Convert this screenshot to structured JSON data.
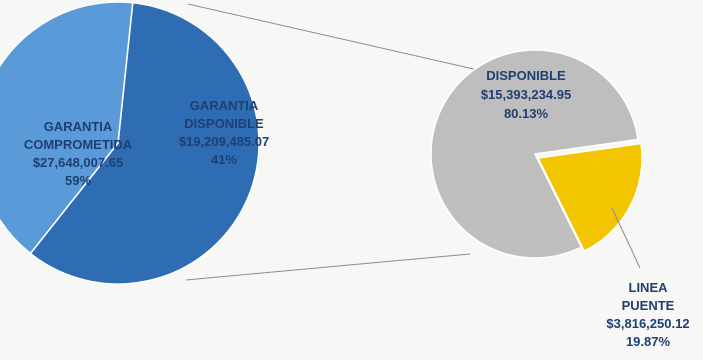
{
  "chart_data": [
    {
      "type": "pie",
      "slices": [
        {
          "labels": [
            "GARANTIA",
            "COMPROMETIDA"
          ],
          "value_label": "$27,648,007.65",
          "percent_label": "59%",
          "value": 27648007.65,
          "percent": 59,
          "color": "#2e6db4",
          "label_color": "#1f3f73"
        },
        {
          "labels": [
            "GARANTIA",
            "DISPONIBLE"
          ],
          "value_label": "$19,209,485.07",
          "percent_label": "41%",
          "value": 19209485.07,
          "percent": 41,
          "color": "#5b9ad8",
          "label_color": "#1f3f73"
        }
      ]
    },
    {
      "type": "pie",
      "slices": [
        {
          "labels": [
            "DISPONIBLE"
          ],
          "value_label": "$15,393,234.95",
          "percent_label": "80.13%",
          "value": 15393234.95,
          "percent": 80.13,
          "color": "#bebebe",
          "label_color": "#1f3f73"
        },
        {
          "labels": [
            "LINEA",
            "PUENTE"
          ],
          "value_label": "$3,816,250.12",
          "percent_label": "19.87%",
          "value": 3816250.12,
          "percent": 19.87,
          "color": "#f2c500",
          "label_color": "#1f3f73"
        }
      ]
    }
  ]
}
